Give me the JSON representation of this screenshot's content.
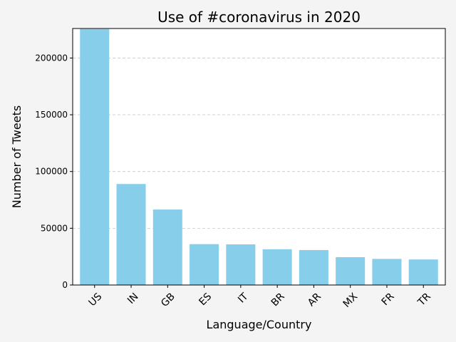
{
  "chart_data": {
    "type": "bar",
    "title": "Use of #coronavirus in 2020",
    "xlabel": "Language/Country",
    "ylabel": "Number of Tweets",
    "categories": [
      "US",
      "IN",
      "GB",
      "ES",
      "IT",
      "BR",
      "AR",
      "MX",
      "FR",
      "TR"
    ],
    "values": [
      225500,
      89000,
      66500,
      36000,
      35800,
      31500,
      30800,
      24500,
      23000,
      22500
    ],
    "ylim": [
      0,
      226000
    ],
    "yticks": [
      0,
      50000,
      100000,
      150000,
      200000
    ],
    "ytick_labels": [
      "0",
      "50000",
      "100000",
      "150000",
      "200000"
    ],
    "grid": "y-dashed",
    "bar_color": "#87ceeb",
    "background_color": "#f4f4f4"
  }
}
